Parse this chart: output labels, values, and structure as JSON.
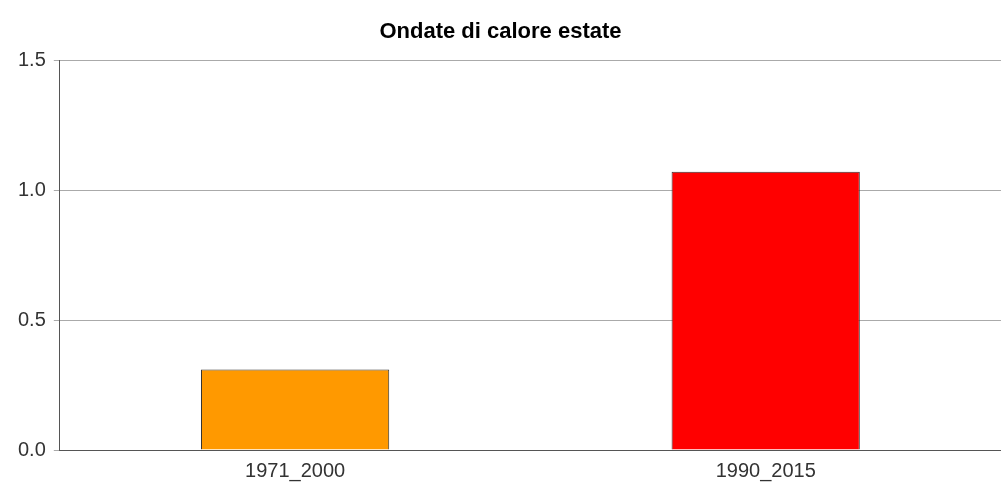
{
  "chart_data": {
    "type": "bar",
    "title": "Ondate di calore estate",
    "categories": [
      "1971_2000",
      "1990_2015"
    ],
    "colors": [
      "#ff9900",
      "#ff0000"
    ],
    "values": [
      0.31,
      1.07
    ],
    "ylim": [
      0,
      1.5
    ],
    "yticks": [
      {
        "value": 0,
        "label": "0.0"
      },
      {
        "value": 0.5,
        "label": "0.5"
      },
      {
        "value": 1,
        "label": "1.0"
      },
      {
        "value": 1.5,
        "label": "1.5"
      }
    ],
    "grid": "y",
    "legend": false
  }
}
